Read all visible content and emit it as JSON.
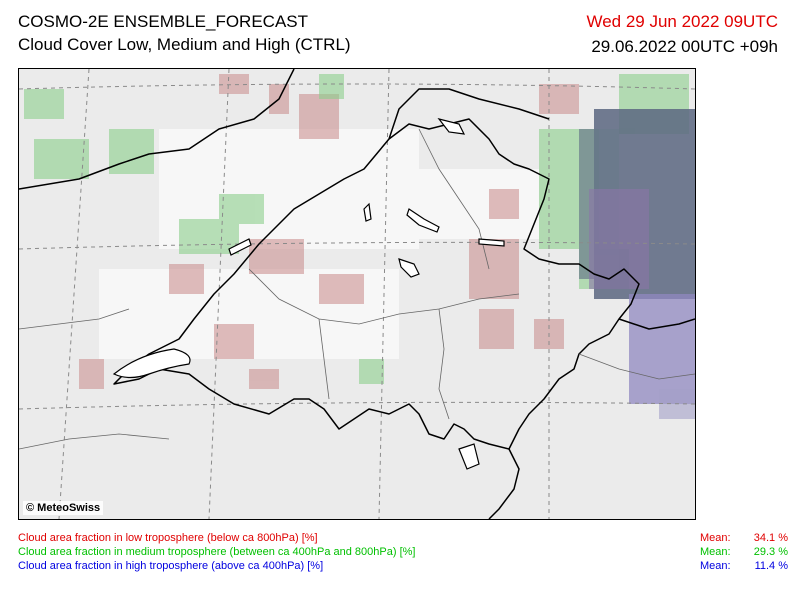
{
  "header": {
    "title": "COSMO-2E ENSEMBLE_FORECAST",
    "subtitle": "Cloud Cover Low, Medium and High (CTRL)",
    "valid_time": "Wed 29 Jun 2022 09UTC",
    "run_time": "29.06.2022 00UTC +09h"
  },
  "map": {
    "copyright": "© MeteoSwiss"
  },
  "legend": {
    "items": [
      {
        "label": "Cloud area fraction in low troposphere (below ca 800hPa) [%]",
        "mean_label": "Mean:",
        "mean_value": "34.1 %",
        "color": "#e00000"
      },
      {
        "label": "Cloud area fraction in medium troposphere (between ca 400hPa and 800hPa) [%]",
        "mean_label": "Mean:",
        "mean_value": "29.3 %",
        "color": "#00c000"
      },
      {
        "label": "Cloud area fraction in high troposphere (above ca 400hPa) [%]",
        "mean_label": "Mean:",
        "mean_value": "11.4 %",
        "color": "#0000e0"
      }
    ]
  }
}
